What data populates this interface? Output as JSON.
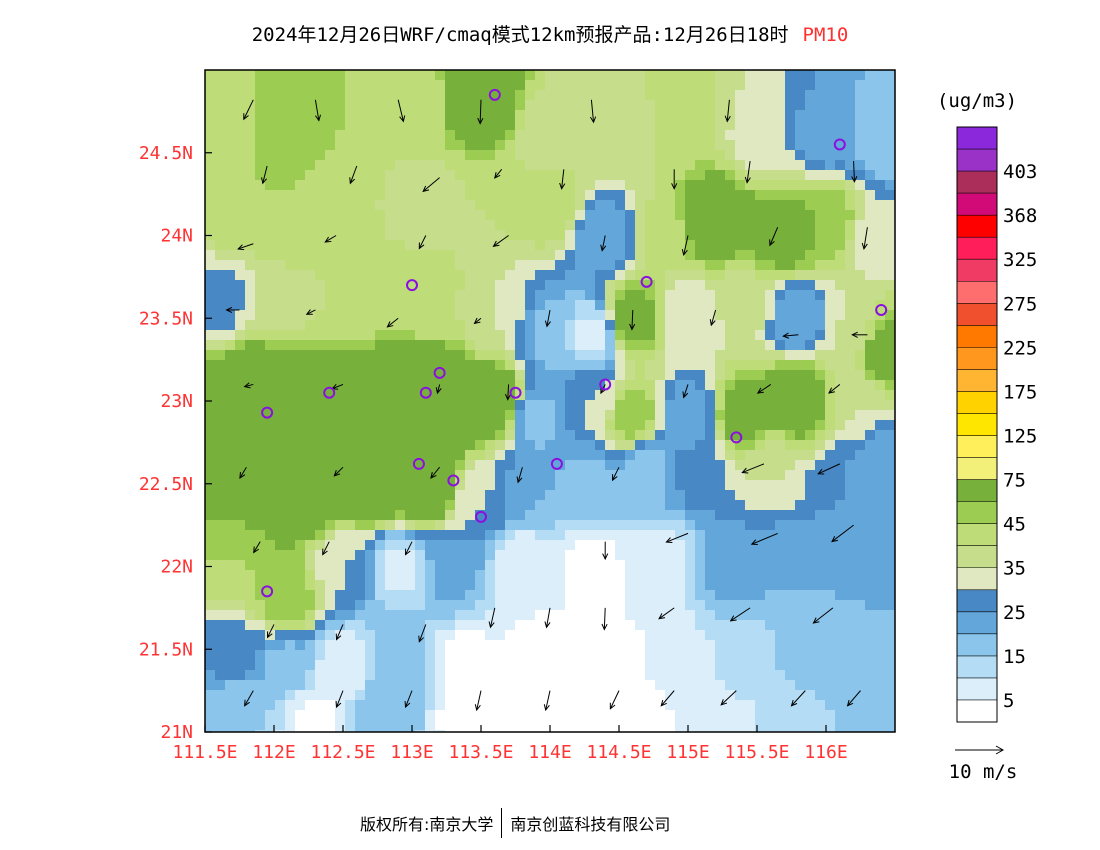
{
  "title": {
    "main": "2024年12月26日WRF/cmaq模式12km预报产品:12月26日18时",
    "pollutant": "PM10"
  },
  "footer": {
    "copyright": "版权所有:南京大学",
    "partner": "南京创蓝科技有限公司"
  },
  "chart_data": {
    "type": "heatmap",
    "title": "2024年12月26日WRF/cmaq模式12km预报产品:12月26日18时 PM10",
    "x_axis": {
      "ticks": [
        111.5,
        112,
        112.5,
        113,
        113.5,
        114,
        114.5,
        115,
        115.5,
        116
      ],
      "tick_labels": [
        "111.5E",
        "112E",
        "112.5E",
        "113E",
        "113.5E",
        "114E",
        "114.5E",
        "115E",
        "115.5E",
        "116E"
      ],
      "range": [
        111.5,
        116.5
      ]
    },
    "y_axis": {
      "ticks": [
        21,
        21.5,
        22,
        22.5,
        23,
        23.5,
        24,
        24.5
      ],
      "tick_labels": [
        "21N",
        "21.5N",
        "22N",
        "22.5N",
        "23N",
        "23.5N",
        "24N",
        "24.5N"
      ],
      "range": [
        21,
        25
      ]
    },
    "colorbar": {
      "unit": "(ug/m3)",
      "levels": [
        0,
        5,
        10,
        15,
        20,
        25,
        30,
        35,
        40,
        45,
        50,
        75,
        100,
        125,
        150,
        175,
        200,
        225,
        250,
        275,
        300,
        325,
        346,
        368,
        386,
        403,
        420
      ],
      "labels": [
        "5",
        "15",
        "25",
        "35",
        "45",
        "75",
        "125",
        "175",
        "225",
        "275",
        "325",
        "368",
        "403"
      ],
      "colors": [
        "#ffffff",
        "#dbeefa",
        "#b4ddf5",
        "#8cc5ec",
        "#62a6da",
        "#4888c4",
        "#dfe8c0",
        "#c6de8c",
        "#bedc78",
        "#9ccc52",
        "#78b03c",
        "#f2f078",
        "#ffef5a",
        "#ffe600",
        "#ffd200",
        "#ffb432",
        "#ff961e",
        "#ff7800",
        "#f0502d",
        "#ff6e6e",
        "#f03c64",
        "#ff1e5a",
        "#ff0000",
        "#d20a78",
        "#aa2d5a",
        "#9b32c8",
        "#8c28dc"
      ]
    },
    "wind_scale": {
      "label": "10 m/s",
      "speed": 10
    },
    "fields": [
      {
        "x": 111.7,
        "y": 24.7,
        "v": 42
      },
      {
        "x": 112.1,
        "y": 24.7,
        "v": 50
      },
      {
        "x": 112.6,
        "y": 24.8,
        "v": 45
      },
      {
        "x": 113.0,
        "y": 24.8,
        "v": 40
      },
      {
        "x": 113.5,
        "y": 24.8,
        "v": 60
      },
      {
        "x": 114.0,
        "y": 24.6,
        "v": 35
      },
      {
        "x": 114.5,
        "y": 24.6,
        "v": 38
      },
      {
        "x": 115.0,
        "y": 24.7,
        "v": 42
      },
      {
        "x": 115.5,
        "y": 24.6,
        "v": 33
      },
      {
        "x": 116.0,
        "y": 24.6,
        "v": 22
      },
      {
        "x": 116.4,
        "y": 24.6,
        "v": 15
      },
      {
        "x": 111.7,
        "y": 24.2,
        "v": 45
      },
      {
        "x": 112.2,
        "y": 24.1,
        "v": 45
      },
      {
        "x": 112.6,
        "y": 24.2,
        "v": 40
      },
      {
        "x": 113.1,
        "y": 24.2,
        "v": 38
      },
      {
        "x": 113.5,
        "y": 24.2,
        "v": 40
      },
      {
        "x": 114.0,
        "y": 24.2,
        "v": 45
      },
      {
        "x": 114.4,
        "y": 24.0,
        "v": 20
      },
      {
        "x": 114.8,
        "y": 24.0,
        "v": 42
      },
      {
        "x": 115.2,
        "y": 24.1,
        "v": 60
      },
      {
        "x": 115.7,
        "y": 24.0,
        "v": 55
      },
      {
        "x": 116.0,
        "y": 24.1,
        "v": 50
      },
      {
        "x": 116.4,
        "y": 24.0,
        "v": 30
      },
      {
        "x": 111.6,
        "y": 23.6,
        "v": 28
      },
      {
        "x": 112.1,
        "y": 23.6,
        "v": 38
      },
      {
        "x": 112.6,
        "y": 23.6,
        "v": 40
      },
      {
        "x": 113.1,
        "y": 23.6,
        "v": 42
      },
      {
        "x": 113.6,
        "y": 23.5,
        "v": 35
      },
      {
        "x": 114.0,
        "y": 23.4,
        "v": 18
      },
      {
        "x": 114.3,
        "y": 23.4,
        "v": 8
      },
      {
        "x": 114.6,
        "y": 23.5,
        "v": 55
      },
      {
        "x": 115.0,
        "y": 23.5,
        "v": 30
      },
      {
        "x": 115.4,
        "y": 23.6,
        "v": 38
      },
      {
        "x": 115.8,
        "y": 23.5,
        "v": 20
      },
      {
        "x": 116.2,
        "y": 23.4,
        "v": 35
      },
      {
        "x": 116.4,
        "y": 23.3,
        "v": 55
      },
      {
        "x": 111.8,
        "y": 23.1,
        "v": 60
      },
      {
        "x": 112.3,
        "y": 23.0,
        "v": 65
      },
      {
        "x": 112.8,
        "y": 23.0,
        "v": 70
      },
      {
        "x": 113.2,
        "y": 23.0,
        "v": 75
      },
      {
        "x": 113.6,
        "y": 23.0,
        "v": 60
      },
      {
        "x": 113.9,
        "y": 22.9,
        "v": 18
      },
      {
        "x": 114.3,
        "y": 23.0,
        "v": 30
      },
      {
        "x": 114.6,
        "y": 22.9,
        "v": 50
      },
      {
        "x": 115.0,
        "y": 22.9,
        "v": 20
      },
      {
        "x": 115.4,
        "y": 22.9,
        "v": 55
      },
      {
        "x": 115.8,
        "y": 23.0,
        "v": 60
      },
      {
        "x": 116.2,
        "y": 23.0,
        "v": 35
      },
      {
        "x": 111.7,
        "y": 22.5,
        "v": 55
      },
      {
        "x": 112.2,
        "y": 22.4,
        "v": 60
      },
      {
        "x": 112.7,
        "y": 22.5,
        "v": 65
      },
      {
        "x": 113.1,
        "y": 22.5,
        "v": 65
      },
      {
        "x": 113.5,
        "y": 22.4,
        "v": 30
      },
      {
        "x": 113.9,
        "y": 22.5,
        "v": 20
      },
      {
        "x": 114.3,
        "y": 22.5,
        "v": 18
      },
      {
        "x": 114.7,
        "y": 22.6,
        "v": 18
      },
      {
        "x": 115.1,
        "y": 22.6,
        "v": 28
      },
      {
        "x": 115.6,
        "y": 22.6,
        "v": 35
      },
      {
        "x": 116.1,
        "y": 22.5,
        "v": 25
      },
      {
        "x": 116.4,
        "y": 22.6,
        "v": 20
      },
      {
        "x": 111.7,
        "y": 22.0,
        "v": 45
      },
      {
        "x": 112.1,
        "y": 21.8,
        "v": 50
      },
      {
        "x": 112.5,
        "y": 22.0,
        "v": 30
      },
      {
        "x": 112.9,
        "y": 22.0,
        "v": 8
      },
      {
        "x": 113.3,
        "y": 22.0,
        "v": 22
      },
      {
        "x": 113.8,
        "y": 22.0,
        "v": 5
      },
      {
        "x": 114.3,
        "y": 22.0,
        "v": 3
      },
      {
        "x": 114.8,
        "y": 22.0,
        "v": 5
      },
      {
        "x": 115.3,
        "y": 22.0,
        "v": 22
      },
      {
        "x": 115.8,
        "y": 22.0,
        "v": 20
      },
      {
        "x": 116.3,
        "y": 22.0,
        "v": 20
      },
      {
        "x": 111.7,
        "y": 21.5,
        "v": 28
      },
      {
        "x": 112.1,
        "y": 21.4,
        "v": 18
      },
      {
        "x": 112.5,
        "y": 21.4,
        "v": 5
      },
      {
        "x": 112.9,
        "y": 21.4,
        "v": 20
      },
      {
        "x": 113.4,
        "y": 21.4,
        "v": 3
      },
      {
        "x": 113.9,
        "y": 21.4,
        "v": 2
      },
      {
        "x": 114.4,
        "y": 21.4,
        "v": 2
      },
      {
        "x": 114.9,
        "y": 21.4,
        "v": 6
      },
      {
        "x": 115.4,
        "y": 21.4,
        "v": 12
      },
      {
        "x": 115.9,
        "y": 21.4,
        "v": 18
      },
      {
        "x": 116.3,
        "y": 21.4,
        "v": 20
      },
      {
        "x": 111.7,
        "y": 21.1,
        "v": 15
      },
      {
        "x": 112.3,
        "y": 21.1,
        "v": 4
      },
      {
        "x": 112.8,
        "y": 21.1,
        "v": 20
      },
      {
        "x": 113.4,
        "y": 21.1,
        "v": 3
      },
      {
        "x": 114.0,
        "y": 21.1,
        "v": 2
      },
      {
        "x": 114.6,
        "y": 21.1,
        "v": 3
      },
      {
        "x": 115.2,
        "y": 21.1,
        "v": 6
      },
      {
        "x": 115.8,
        "y": 21.1,
        "v": 12
      },
      {
        "x": 116.3,
        "y": 21.1,
        "v": 18
      }
    ],
    "stations": [
      [
        113.6,
        24.85
      ],
      [
        116.1,
        24.55
      ],
      [
        113.0,
        23.7
      ],
      [
        114.7,
        23.72
      ],
      [
        116.4,
        23.55
      ],
      [
        112.4,
        23.05
      ],
      [
        111.95,
        22.93
      ],
      [
        113.1,
        23.05
      ],
      [
        113.2,
        23.17
      ],
      [
        113.75,
        23.05
      ],
      [
        114.4,
        23.1
      ],
      [
        115.35,
        22.78
      ],
      [
        113.05,
        22.62
      ],
      [
        113.3,
        22.52
      ],
      [
        114.05,
        22.62
      ],
      [
        113.5,
        22.3
      ],
      [
        111.95,
        21.85
      ]
    ],
    "wind": [
      {
        "x": 111.85,
        "y": 24.82,
        "u": -2.2,
        "v": -4.5
      },
      {
        "x": 112.3,
        "y": 24.82,
        "u": 0.8,
        "v": -4.8
      },
      {
        "x": 112.9,
        "y": 24.82,
        "u": 1.2,
        "v": -5.0
      },
      {
        "x": 113.5,
        "y": 24.82,
        "u": -0.2,
        "v": -5.5
      },
      {
        "x": 114.3,
        "y": 24.82,
        "u": 0.5,
        "v": -5.2
      },
      {
        "x": 115.3,
        "y": 24.82,
        "u": -0.5,
        "v": -5.0
      },
      {
        "x": 111.95,
        "y": 24.42,
        "u": -1.0,
        "v": -4.0
      },
      {
        "x": 112.6,
        "y": 24.42,
        "u": -1.5,
        "v": -4.0
      },
      {
        "x": 113.2,
        "y": 24.35,
        "u": -3.8,
        "v": -3.2
      },
      {
        "x": 113.65,
        "y": 24.4,
        "u": -1.6,
        "v": -2.0
      },
      {
        "x": 114.1,
        "y": 24.4,
        "u": -0.5,
        "v": -4.5
      },
      {
        "x": 114.9,
        "y": 24.4,
        "u": 0.0,
        "v": -4.5
      },
      {
        "x": 115.45,
        "y": 24.45,
        "u": -0.7,
        "v": -5.0
      },
      {
        "x": 116.2,
        "y": 24.45,
        "u": 0.2,
        "v": -4.8
      },
      {
        "x": 111.85,
        "y": 23.95,
        "u": -3.5,
        "v": -1.2
      },
      {
        "x": 112.45,
        "y": 24.0,
        "u": -2.5,
        "v": -1.5
      },
      {
        "x": 113.1,
        "y": 24.0,
        "u": -1.5,
        "v": -3.0
      },
      {
        "x": 113.7,
        "y": 24.0,
        "u": -3.5,
        "v": -2.5
      },
      {
        "x": 114.4,
        "y": 24.0,
        "u": -0.7,
        "v": -3.5
      },
      {
        "x": 115.0,
        "y": 24.0,
        "u": -1.0,
        "v": -4.5
      },
      {
        "x": 115.65,
        "y": 24.05,
        "u": -1.8,
        "v": -4.2
      },
      {
        "x": 116.3,
        "y": 24.05,
        "u": -0.8,
        "v": -5.0
      },
      {
        "x": 111.75,
        "y": 23.55,
        "u": -3.0,
        "v": 0.0
      },
      {
        "x": 112.3,
        "y": 23.55,
        "u": -2.0,
        "v": -1.0
      },
      {
        "x": 112.9,
        "y": 23.5,
        "u": -2.5,
        "v": -2.0
      },
      {
        "x": 113.5,
        "y": 23.5,
        "u": -1.5,
        "v": -1.2
      },
      {
        "x": 114.0,
        "y": 23.55,
        "u": -0.7,
        "v": -3.8
      },
      {
        "x": 114.6,
        "y": 23.55,
        "u": -0.2,
        "v": -4.5
      },
      {
        "x": 115.2,
        "y": 23.55,
        "u": -1.0,
        "v": -3.5
      },
      {
        "x": 115.8,
        "y": 23.4,
        "u": -3.5,
        "v": -0.3
      },
      {
        "x": 116.3,
        "y": 23.4,
        "u": -3.5,
        "v": 0.0
      },
      {
        "x": 111.85,
        "y": 23.1,
        "u": -2.0,
        "v": -0.5
      },
      {
        "x": 112.5,
        "y": 23.1,
        "u": -2.5,
        "v": -1.0
      },
      {
        "x": 113.2,
        "y": 23.1,
        "u": -0.5,
        "v": -2.0
      },
      {
        "x": 113.7,
        "y": 23.1,
        "u": -0.2,
        "v": -3.5
      },
      {
        "x": 114.4,
        "y": 23.1,
        "u": -1.0,
        "v": -2.0
      },
      {
        "x": 115.0,
        "y": 23.1,
        "u": -1.0,
        "v": -3.0
      },
      {
        "x": 115.6,
        "y": 23.1,
        "u": -3.0,
        "v": -2.0
      },
      {
        "x": 116.1,
        "y": 23.1,
        "u": -2.5,
        "v": -2.0
      },
      {
        "x": 111.8,
        "y": 22.6,
        "u": -1.5,
        "v": -2.5
      },
      {
        "x": 112.5,
        "y": 22.6,
        "u": -2.0,
        "v": -2.0
      },
      {
        "x": 113.2,
        "y": 22.6,
        "u": -2.0,
        "v": -2.5
      },
      {
        "x": 113.8,
        "y": 22.6,
        "u": -1.0,
        "v": -3.5
      },
      {
        "x": 114.5,
        "y": 22.6,
        "u": -1.5,
        "v": -3.0
      },
      {
        "x": 115.55,
        "y": 22.62,
        "u": -5.0,
        "v": -2.0
      },
      {
        "x": 116.1,
        "y": 22.62,
        "u": -5.0,
        "v": -2.3
      },
      {
        "x": 111.9,
        "y": 22.15,
        "u": -1.5,
        "v": -2.5
      },
      {
        "x": 112.4,
        "y": 22.15,
        "u": -1.5,
        "v": -3.0
      },
      {
        "x": 113.0,
        "y": 22.15,
        "u": -1.5,
        "v": -3.0
      },
      {
        "x": 114.4,
        "y": 22.15,
        "u": 0.0,
        "v": -4.0
      },
      {
        "x": 115.0,
        "y": 22.2,
        "u": -5.0,
        "v": -2.0
      },
      {
        "x": 115.65,
        "y": 22.2,
        "u": -6.0,
        "v": -2.5
      },
      {
        "x": 116.2,
        "y": 22.25,
        "u": -5.0,
        "v": -3.8
      },
      {
        "x": 112.0,
        "y": 21.65,
        "u": -1.5,
        "v": -3.0
      },
      {
        "x": 112.5,
        "y": 21.65,
        "u": -1.5,
        "v": -3.5
      },
      {
        "x": 113.1,
        "y": 21.65,
        "u": -1.5,
        "v": -4.0
      },
      {
        "x": 113.6,
        "y": 21.75,
        "u": -1.0,
        "v": -4.5
      },
      {
        "x": 114.0,
        "y": 21.75,
        "u": -0.8,
        "v": -4.5
      },
      {
        "x": 114.4,
        "y": 21.75,
        "u": -0.2,
        "v": -5.0
      },
      {
        "x": 114.9,
        "y": 21.75,
        "u": -3.5,
        "v": -2.5
      },
      {
        "x": 115.45,
        "y": 21.75,
        "u": -4.5,
        "v": -3.0
      },
      {
        "x": 116.05,
        "y": 21.75,
        "u": -4.5,
        "v": -3.5
      },
      {
        "x": 111.85,
        "y": 21.25,
        "u": -2.0,
        "v": -3.5
      },
      {
        "x": 112.5,
        "y": 21.25,
        "u": -1.5,
        "v": -3.8
      },
      {
        "x": 113.0,
        "y": 21.25,
        "u": -1.5,
        "v": -3.8
      },
      {
        "x": 113.5,
        "y": 21.25,
        "u": -1.0,
        "v": -4.5
      },
      {
        "x": 114.0,
        "y": 21.25,
        "u": -1.0,
        "v": -4.5
      },
      {
        "x": 114.5,
        "y": 21.25,
        "u": -2.0,
        "v": -4.2
      },
      {
        "x": 114.9,
        "y": 21.25,
        "u": -3.0,
        "v": -3.5
      },
      {
        "x": 115.35,
        "y": 21.25,
        "u": -3.5,
        "v": -3.3
      },
      {
        "x": 115.85,
        "y": 21.25,
        "u": -3.2,
        "v": -3.5
      },
      {
        "x": 116.25,
        "y": 21.25,
        "u": -3.0,
        "v": -3.5
      }
    ]
  }
}
